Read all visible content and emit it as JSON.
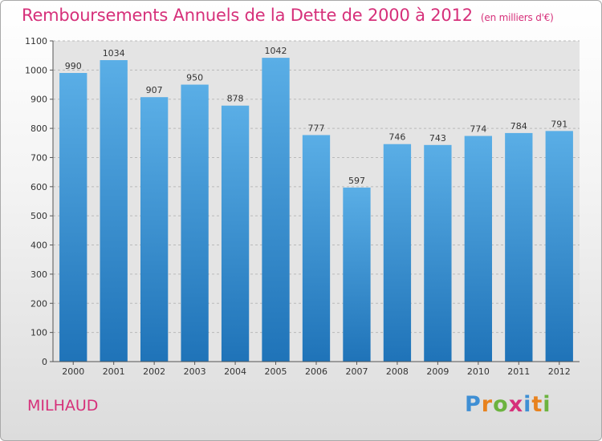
{
  "header": {
    "title": "Remboursements Annuels de la Dette de 2000 à 2012",
    "subtitle": "(en milliers d'€)"
  },
  "footer": {
    "city": "MILHAUD",
    "logo_letters": [
      "P",
      "r",
      "o",
      "x",
      "i",
      "t",
      "i"
    ],
    "logo_colors": [
      "#3f8fd4",
      "#e8821e",
      "#6cb33f",
      "#d6307a",
      "#3f8fd4",
      "#e8821e",
      "#6cb33f"
    ]
  },
  "colors": {
    "title": "#d6307a",
    "bar_top": "#5aaee6",
    "bar_bottom": "#1f73b8",
    "grid": "#b9b9b9"
  },
  "chart_data": {
    "type": "bar",
    "categories": [
      "2000",
      "2001",
      "2002",
      "2003",
      "2004",
      "2005",
      "2006",
      "2007",
      "2008",
      "2009",
      "2010",
      "2011",
      "2012"
    ],
    "values": [
      990,
      1034,
      907,
      950,
      878,
      1042,
      777,
      597,
      746,
      743,
      774,
      784,
      791
    ],
    "value_labels": [
      "990",
      "1034",
      "907",
      "950",
      "878",
      "1042",
      "777",
      "597",
      "746",
      "743",
      "774",
      "784",
      "791"
    ],
    "title": "Remboursements Annuels de la Dette de 2000 à 2012",
    "xlabel": "",
    "ylabel": "",
    "ylim": [
      0,
      1100
    ],
    "yticks": [
      0,
      100,
      200,
      300,
      400,
      500,
      600,
      700,
      800,
      900,
      1000,
      1100
    ],
    "ytick_labels": [
      "0",
      "100",
      "200",
      "300",
      "400",
      "500",
      "600",
      "700",
      "800",
      "900",
      "1000",
      "1100"
    ],
    "grid": true,
    "legend": "none"
  }
}
